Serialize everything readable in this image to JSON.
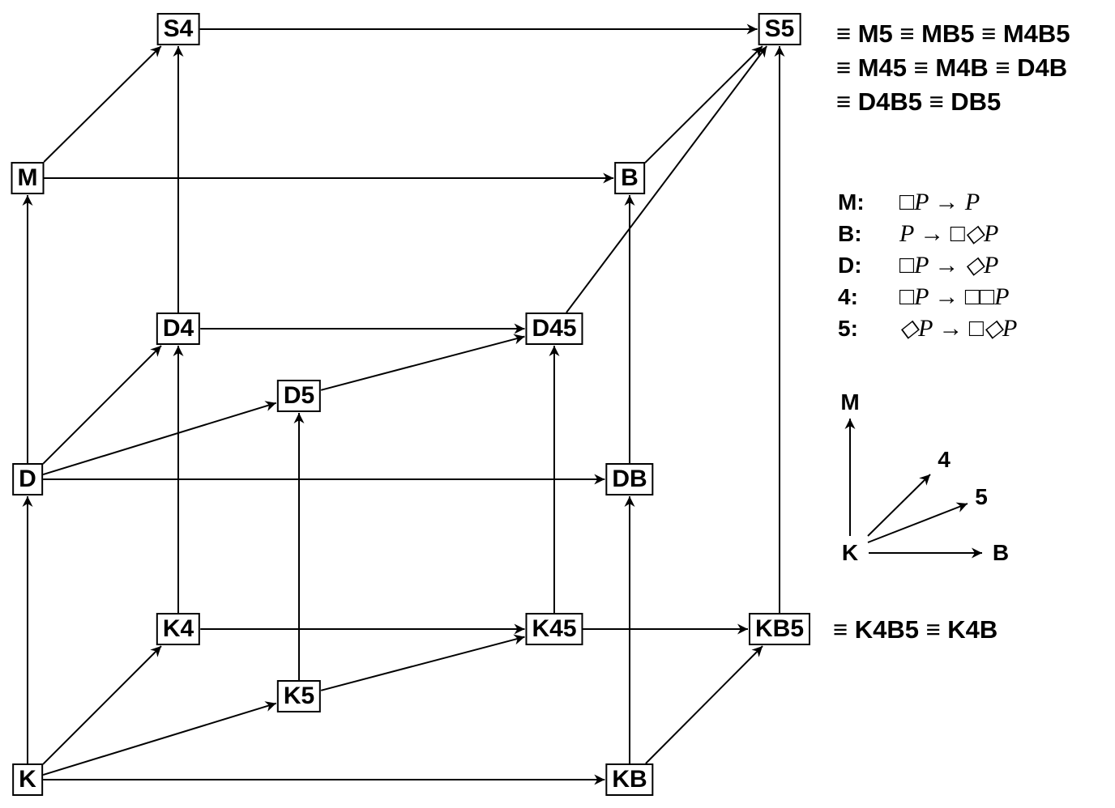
{
  "nodes": [
    {
      "id": "K",
      "label": "K"
    },
    {
      "id": "KB",
      "label": "KB"
    },
    {
      "id": "K4",
      "label": "K4"
    },
    {
      "id": "K5",
      "label": "K5"
    },
    {
      "id": "K45",
      "label": "K45"
    },
    {
      "id": "KB5",
      "label": "KB5"
    },
    {
      "id": "D",
      "label": "D"
    },
    {
      "id": "DB",
      "label": "DB"
    },
    {
      "id": "D4",
      "label": "D4"
    },
    {
      "id": "D5",
      "label": "D5"
    },
    {
      "id": "D45",
      "label": "D45"
    },
    {
      "id": "M",
      "label": "M"
    },
    {
      "id": "B",
      "label": "B"
    },
    {
      "id": "S4",
      "label": "S4"
    },
    {
      "id": "S5",
      "label": "S5"
    }
  ],
  "edges": [
    [
      "K",
      "KB"
    ],
    [
      "K",
      "K4"
    ],
    [
      "K",
      "K5"
    ],
    [
      "K",
      "D"
    ],
    [
      "K4",
      "K45"
    ],
    [
      "K5",
      "K45"
    ],
    [
      "K45",
      "KB5"
    ],
    [
      "KB",
      "KB5"
    ],
    [
      "KB",
      "DB"
    ],
    [
      "K4",
      "D4"
    ],
    [
      "K5",
      "D5"
    ],
    [
      "K45",
      "D45"
    ],
    [
      "KB5",
      "S5"
    ],
    [
      "D",
      "DB"
    ],
    [
      "D",
      "D4"
    ],
    [
      "D",
      "D5"
    ],
    [
      "D",
      "M"
    ],
    [
      "D4",
      "D45"
    ],
    [
      "D5",
      "D45"
    ],
    [
      "D4",
      "S4"
    ],
    [
      "D45",
      "S5"
    ],
    [
      "DB",
      "B"
    ],
    [
      "M",
      "B"
    ],
    [
      "M",
      "S4"
    ],
    [
      "S4",
      "S5"
    ],
    [
      "B",
      "S5"
    ]
  ],
  "equivalences": {
    "s5_line1": "≡ M5 ≡ MB5 ≡ M4B5",
    "s5_line2": "≡ M45 ≡ M4B ≡ D4B",
    "s5_line3": "≡ D4B5 ≡ DB5",
    "kb5": "≡ K4B5 ≡ K4B"
  },
  "axioms": [
    {
      "name": "M:",
      "formula": "□P → P"
    },
    {
      "name": "B:",
      "formula": "P → □◇P"
    },
    {
      "name": "D:",
      "formula": "□P → ◇P"
    },
    {
      "name": "4:",
      "formula": "□P → □□P"
    },
    {
      "name": "5:",
      "formula": "◇P → □◇P"
    }
  ],
  "key": {
    "origin": "K",
    "up": "M",
    "diag1": "4",
    "diag2": "5",
    "right": "B"
  }
}
